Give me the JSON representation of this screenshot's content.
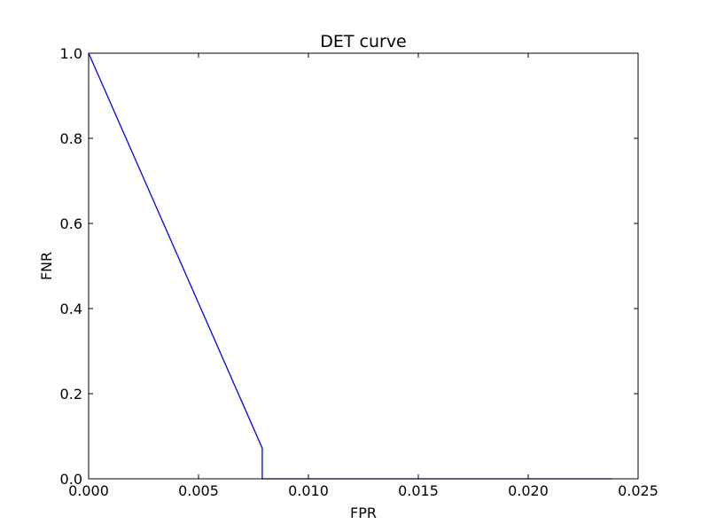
{
  "chart_data": {
    "type": "line",
    "title": "DET curve",
    "xlabel": "FPR",
    "ylabel": "FNR",
    "xlim": [
      0.0,
      0.025
    ],
    "ylim": [
      0.0,
      1.0
    ],
    "xticks": [
      0.0,
      0.005,
      0.01,
      0.015,
      0.02,
      0.025
    ],
    "xtick_labels": [
      "0.000",
      "0.005",
      "0.010",
      "0.015",
      "0.020",
      "0.025"
    ],
    "yticks": [
      0.0,
      0.2,
      0.4,
      0.6,
      0.8,
      1.0
    ],
    "ytick_labels": [
      "0.0",
      "0.2",
      "0.4",
      "0.6",
      "0.8",
      "1.0"
    ],
    "grid": false,
    "series": [
      {
        "color": "#0000ff",
        "x": [
          0.0,
          0.0079,
          0.0079,
          0.0238
        ],
        "y": [
          1.0,
          0.072,
          0.0,
          0.0
        ]
      }
    ]
  }
}
